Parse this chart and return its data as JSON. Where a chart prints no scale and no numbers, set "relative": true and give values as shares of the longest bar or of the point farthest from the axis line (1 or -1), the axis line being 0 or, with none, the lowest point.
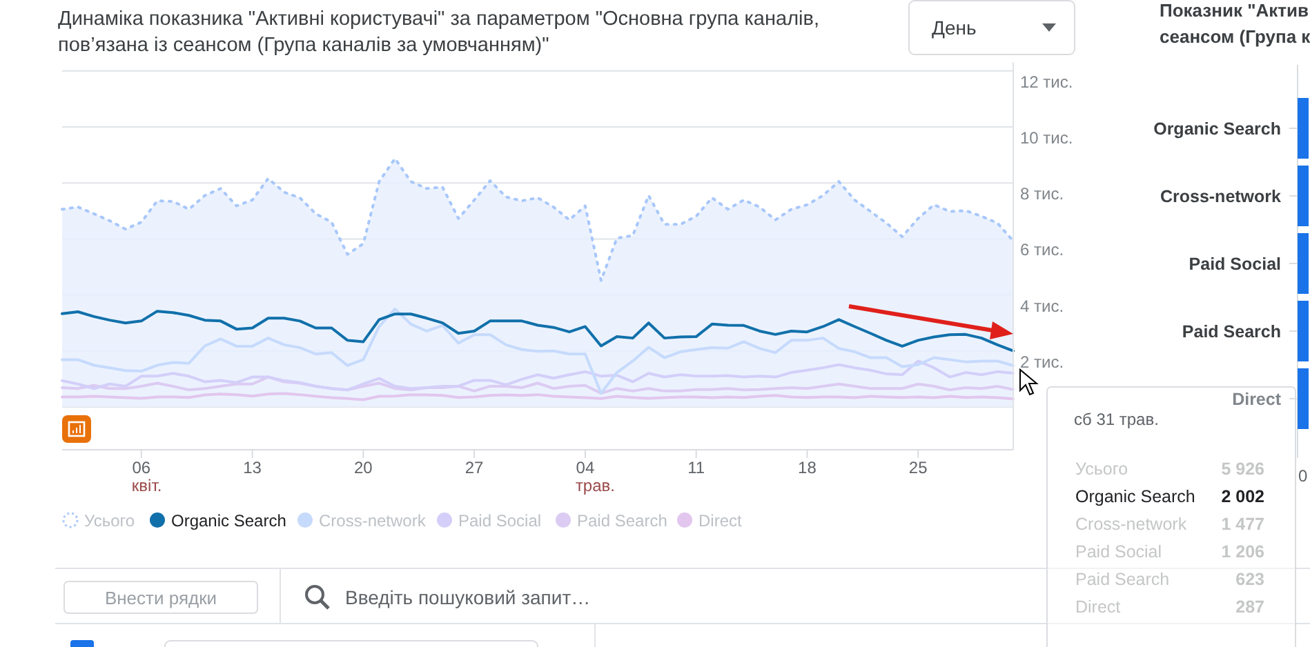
{
  "chart_data": [
    {
      "type": "line",
      "title": "Динаміка показника \"Активні користувачі\" за параметром \"Основна група каналів,\nпов’язана із сеансом (Група каналів за умовчанням)\"",
      "x": [
        "--04-01",
        "--04-02",
        "--04-03",
        "--04-04",
        "--04-05",
        "--04-06",
        "--04-07",
        "--04-08",
        "--04-09",
        "--04-10",
        "--04-11",
        "--04-12",
        "--04-13",
        "--04-14",
        "--04-15",
        "--04-16",
        "--04-17",
        "--04-18",
        "--04-19",
        "--04-20",
        "--04-21",
        "--04-22",
        "--04-23",
        "--04-24",
        "--04-25",
        "--04-26",
        "--04-27",
        "--04-28",
        "--04-29",
        "--04-30",
        "--05-01",
        "--05-02",
        "--05-03",
        "--05-04",
        "--05-05",
        "--05-06",
        "--05-07",
        "--05-08",
        "--05-09",
        "--05-10",
        "--05-11",
        "--05-12",
        "--05-13",
        "--05-14",
        "--05-15",
        "--05-16",
        "--05-17",
        "--05-18",
        "--05-19",
        "--05-20",
        "--05-21",
        "--05-22",
        "--05-23",
        "--05-24",
        "--05-25",
        "--05-26",
        "--05-27",
        "--05-28",
        "--05-29",
        "--05-30",
        "--05-31"
      ],
      "series": [
        {
          "name": "Усього",
          "type": "area",
          "line_style": "dotted",
          "color": "#a8c7fa",
          "values": [
            7.06,
            7.14,
            6.9,
            6.65,
            6.35,
            6.6,
            7.36,
            7.34,
            7.06,
            7.55,
            7.8,
            7.18,
            7.39,
            8.16,
            7.67,
            7.47,
            6.9,
            6.6,
            5.45,
            5.83,
            8.05,
            8.87,
            8.05,
            7.8,
            7.85,
            6.73,
            7.39,
            8.08,
            7.5,
            7.36,
            7.47,
            7.14,
            6.68,
            7.18,
            4.52,
            6.03,
            6.12,
            7.55,
            6.52,
            6.52,
            6.81,
            7.47,
            7.06,
            7.39,
            7.14,
            6.68,
            7.06,
            7.22,
            7.55,
            8.05,
            7.39,
            6.98,
            6.57,
            6.08,
            6.73,
            7.22,
            6.98,
            7.01,
            6.81,
            6.57,
            5.926
          ]
        },
        {
          "name": "Organic Search",
          "color": "#1170aa",
          "values": [
            3.33,
            3.4,
            3.23,
            3.1,
            3.0,
            3.07,
            3.42,
            3.37,
            3.27,
            3.1,
            3.07,
            2.78,
            2.82,
            3.17,
            3.17,
            3.07,
            2.82,
            2.82,
            2.38,
            2.33,
            3.12,
            3.32,
            3.32,
            3.17,
            3.0,
            2.63,
            2.71,
            3.07,
            3.07,
            3.07,
            2.92,
            2.84,
            2.68,
            2.87,
            2.18,
            2.51,
            2.46,
            3.0,
            2.46,
            2.5,
            2.51,
            2.96,
            2.92,
            2.91,
            2.71,
            2.59,
            2.71,
            2.68,
            2.87,
            3.12,
            2.87,
            2.63,
            2.38,
            2.17,
            2.38,
            2.5,
            2.58,
            2.59,
            2.46,
            2.22,
            2.002
          ]
        },
        {
          "name": "Cross-network",
          "color": "#c6dafc",
          "values": [
            1.69,
            1.69,
            1.49,
            1.4,
            1.3,
            1.28,
            1.49,
            1.59,
            1.56,
            2.18,
            2.43,
            2.17,
            2.17,
            2.46,
            2.22,
            2.12,
            1.89,
            1.94,
            1.48,
            1.69,
            2.87,
            3.5,
            2.96,
            2.71,
            2.91,
            2.28,
            2.58,
            2.58,
            2.22,
            2.05,
            1.99,
            2.0,
            1.89,
            1.89,
            0.49,
            1.23,
            1.64,
            2.13,
            1.76,
            1.97,
            2.05,
            2.12,
            2.1,
            2.33,
            2.09,
            1.94,
            2.38,
            2.38,
            2.46,
            2.09,
            1.97,
            1.76,
            1.76,
            1.44,
            1.51,
            1.76,
            1.69,
            1.61,
            1.64,
            1.64,
            1.477
          ]
        },
        {
          "name": "Paid Social",
          "color": "#d3cff9",
          "values": [
            0.94,
            0.82,
            0.66,
            0.82,
            0.74,
            1.1,
            1.1,
            1.2,
            1.1,
            0.9,
            0.95,
            0.87,
            1.07,
            1.07,
            0.94,
            0.87,
            0.74,
            0.66,
            0.61,
            0.82,
            1.02,
            0.74,
            0.66,
            0.69,
            0.74,
            0.74,
            0.95,
            0.95,
            0.79,
            0.99,
            1.15,
            1.03,
            1.15,
            1.26,
            1.1,
            1.13,
            0.9,
            1.2,
            1.07,
            1.15,
            1.1,
            1.1,
            1.12,
            1.07,
            1.1,
            1.07,
            1.23,
            1.31,
            1.4,
            1.51,
            1.4,
            1.31,
            1.18,
            1.15,
            1.64,
            1.4,
            1.07,
            1.23,
            1.15,
            1.26,
            1.206
          ]
        },
        {
          "name": "Paid Search",
          "color": "#dccbf2",
          "values": [
            0.69,
            0.66,
            0.77,
            0.66,
            0.66,
            0.74,
            0.85,
            0.74,
            0.61,
            0.66,
            0.74,
            0.82,
            0.82,
            1.07,
            0.9,
            0.85,
            0.74,
            0.66,
            0.61,
            0.74,
            0.85,
            0.66,
            0.61,
            0.69,
            0.69,
            0.74,
            0.57,
            0.74,
            0.74,
            0.69,
            0.85,
            0.66,
            0.74,
            0.77,
            0.49,
            0.66,
            0.57,
            0.66,
            0.57,
            0.57,
            0.62,
            0.62,
            0.66,
            0.61,
            0.62,
            0.66,
            0.69,
            0.66,
            0.74,
            0.82,
            0.74,
            0.66,
            0.66,
            0.66,
            0.82,
            0.74,
            0.61,
            0.69,
            0.66,
            0.74,
            0.623
          ]
        },
        {
          "name": "Direct",
          "color": "#e2c6ee",
          "values": [
            0.36,
            0.36,
            0.38,
            0.36,
            0.33,
            0.31,
            0.36,
            0.36,
            0.34,
            0.43,
            0.46,
            0.44,
            0.39,
            0.46,
            0.48,
            0.44,
            0.38,
            0.33,
            0.3,
            0.26,
            0.38,
            0.39,
            0.44,
            0.43,
            0.41,
            0.34,
            0.36,
            0.41,
            0.43,
            0.41,
            0.44,
            0.38,
            0.36,
            0.33,
            0.3,
            0.38,
            0.34,
            0.31,
            0.33,
            0.36,
            0.36,
            0.33,
            0.36,
            0.34,
            0.38,
            0.41,
            0.36,
            0.34,
            0.36,
            0.36,
            0.33,
            0.38,
            0.36,
            0.34,
            0.36,
            0.33,
            0.38,
            0.34,
            0.36,
            0.33,
            0.287
          ]
        }
      ],
      "xlim": [
        "--04-01",
        "--05-31"
      ],
      "xticks": [
        {
          "value": "--04-06",
          "label": "06\nквіт."
        },
        {
          "value": "--04-13",
          "label": "13"
        },
        {
          "value": "--04-20",
          "label": "20"
        },
        {
          "value": "--04-27",
          "label": "27"
        },
        {
          "value": "--05-04",
          "label": "04\nтрав."
        },
        {
          "value": "--05-11",
          "label": "11"
        },
        {
          "value": "--05-18",
          "label": "18"
        },
        {
          "value": "--05-25",
          "label": "25"
        }
      ],
      "ylim": [
        0,
        12
      ],
      "yticks": [
        {
          "value": 2,
          "label": "2 тис."
        },
        {
          "value": 4,
          "label": "4 тис."
        },
        {
          "value": 6,
          "label": "6 тис."
        },
        {
          "value": 8,
          "label": "8 тис."
        },
        {
          "value": 10,
          "label": "10 тис."
        },
        {
          "value": 12,
          "label": "12 тис."
        }
      ],
      "grid": "y",
      "legend": "bottom",
      "marker": "none",
      "line_style": "solid",
      "annotations": [
        "сб 31 трав.",
        "День",
        "Внести рядки",
        "Введіть пошуковий запит…",
        "5 926",
        "2 002",
        "1 477",
        "1 206",
        "623",
        "287"
      ]
    },
    {
      "type": "bar",
      "orientation": "horizontal",
      "relative": true,
      "title": "Показник \"Актив\nсеансом (Група к",
      "categories": [
        "Organic Search",
        "Cross-network",
        "Paid Social",
        "Paid Search",
        "Direct"
      ],
      "values": [
        1,
        1,
        1,
        1,
        1
      ],
      "color": "#1a73e8",
      "annotations": [
        "0"
      ]
    }
  ]
}
